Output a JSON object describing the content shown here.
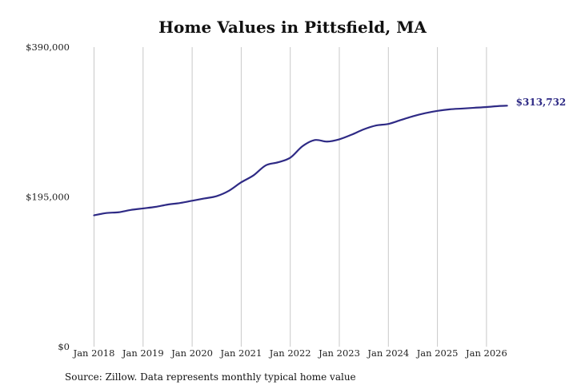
{
  "chart_data": {
    "type": "line",
    "title": "Home Values in Pittsfield, MA",
    "xlabel": "",
    "ylabel": "",
    "ylim": [
      0,
      390000
    ],
    "y_ticks": [
      {
        "value": 0,
        "label": "$0"
      },
      {
        "value": 195000,
        "label": "$195,000"
      },
      {
        "value": 390000,
        "label": "$390,000"
      }
    ],
    "x_ticks": [
      {
        "value": 2018.0,
        "label": "Jan 2018"
      },
      {
        "value": 2019.0,
        "label": "Jan 2019"
      },
      {
        "value": 2020.0,
        "label": "Jan 2020"
      },
      {
        "value": 2021.0,
        "label": "Jan 2021"
      },
      {
        "value": 2022.0,
        "label": "Jan 2022"
      },
      {
        "value": 2023.0,
        "label": "Jan 2023"
      },
      {
        "value": 2024.0,
        "label": "Jan 2024"
      },
      {
        "value": 2025.0,
        "label": "Jan 2025"
      },
      {
        "value": 2026.0,
        "label": "Jan 2026"
      }
    ],
    "grid": {
      "vertical": true,
      "horizontal": false
    },
    "legend": "none",
    "series": [
      {
        "color": "#2e2a85",
        "end_label": "$313,732",
        "points": [
          [
            2018.0,
            171000
          ],
          [
            2018.25,
            174000
          ],
          [
            2018.5,
            175000
          ],
          [
            2018.75,
            178000
          ],
          [
            2019.0,
            180000
          ],
          [
            2019.25,
            182000
          ],
          [
            2019.5,
            185000
          ],
          [
            2019.75,
            187000
          ],
          [
            2020.0,
            190000
          ],
          [
            2020.25,
            193000
          ],
          [
            2020.5,
            196000
          ],
          [
            2020.75,
            203000
          ],
          [
            2021.0,
            214000
          ],
          [
            2021.25,
            223000
          ],
          [
            2021.5,
            236000
          ],
          [
            2021.75,
            240000
          ],
          [
            2022.0,
            246000
          ],
          [
            2022.25,
            261000
          ],
          [
            2022.5,
            269000
          ],
          [
            2022.75,
            267000
          ],
          [
            2023.0,
            270000
          ],
          [
            2023.25,
            276000
          ],
          [
            2023.5,
            283000
          ],
          [
            2023.75,
            288000
          ],
          [
            2024.0,
            290000
          ],
          [
            2024.25,
            295000
          ],
          [
            2024.5,
            300000
          ],
          [
            2024.75,
            304000
          ],
          [
            2025.0,
            307000
          ],
          [
            2025.25,
            309000
          ],
          [
            2025.5,
            310000
          ],
          [
            2025.75,
            311000
          ],
          [
            2026.0,
            312000
          ],
          [
            2026.25,
            313300
          ],
          [
            2026.42,
            313732
          ]
        ]
      }
    ]
  },
  "footer": {
    "source": "Source: Zillow. Data represents monthly typical home value"
  }
}
